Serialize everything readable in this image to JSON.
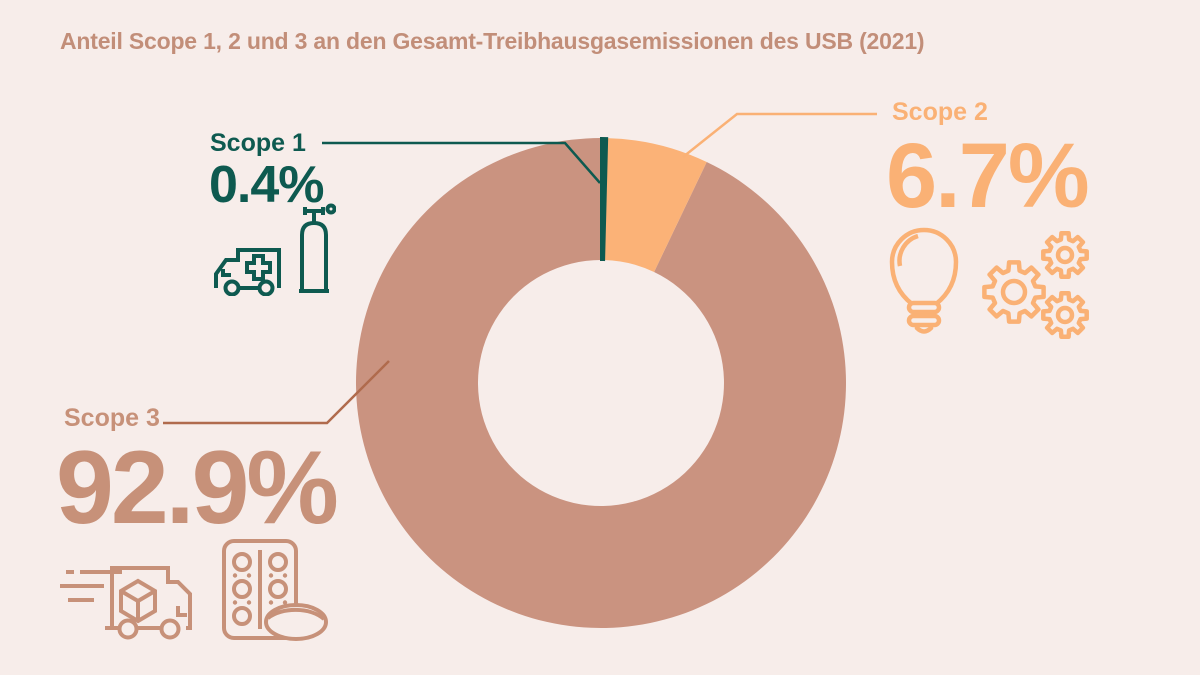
{
  "title": "Anteil Scope 1, 2 und 3 an den Gesamt-Treibhausgasemissionen des USB (2021)",
  "colors": {
    "background": "#F7EDEA",
    "teal": "#0E5A50",
    "orange": "#FAB175",
    "orange_slice": "#FBB277",
    "terracotta": "#C79179",
    "terracotta_slice": "#CA9380",
    "scope3_leader": "#B06B4D",
    "title_text": "#C28E79"
  },
  "chart_data": {
    "type": "pie",
    "donut": true,
    "title": "Anteil Scope 1, 2 und 3 an den Gesamt-Treibhausgasemissionen des USB (2021)",
    "center": [
      601,
      383
    ],
    "outer_radius": 245,
    "inner_radius": 123,
    "start_angle_deg": 0,
    "clockwise": true,
    "legend_position": "callout-labels",
    "series": [
      {
        "name": "Scope 1",
        "value_pct": 0.4,
        "color": "#0E5A50"
      },
      {
        "name": "Scope 2",
        "value_pct": 6.7,
        "color": "#FBB277"
      },
      {
        "name": "Scope 3",
        "value_pct": 92.9,
        "color": "#CA9380"
      }
    ]
  },
  "labels": {
    "scope1": {
      "name": "Scope 1",
      "pct": "0.4%",
      "icons": [
        "ambulance-icon",
        "gas-cylinder-icon"
      ],
      "leader_points": "322,143 565,143 600,183",
      "leader_color": "#0E5A50"
    },
    "scope2": {
      "name": "Scope 2",
      "pct": "6.7%",
      "icons": [
        "lightbulb-icon",
        "gears-icon"
      ],
      "leader_points": "877,114 737,114 683,157",
      "leader_color": "#FAB175"
    },
    "scope3": {
      "name": "Scope 3",
      "pct": "92.9%",
      "icons": [
        "delivery-truck-icon",
        "blister-pack-icon"
      ],
      "leader_points": "163,423 327,423 389,361",
      "leader_color": "#B06B4D"
    }
  }
}
